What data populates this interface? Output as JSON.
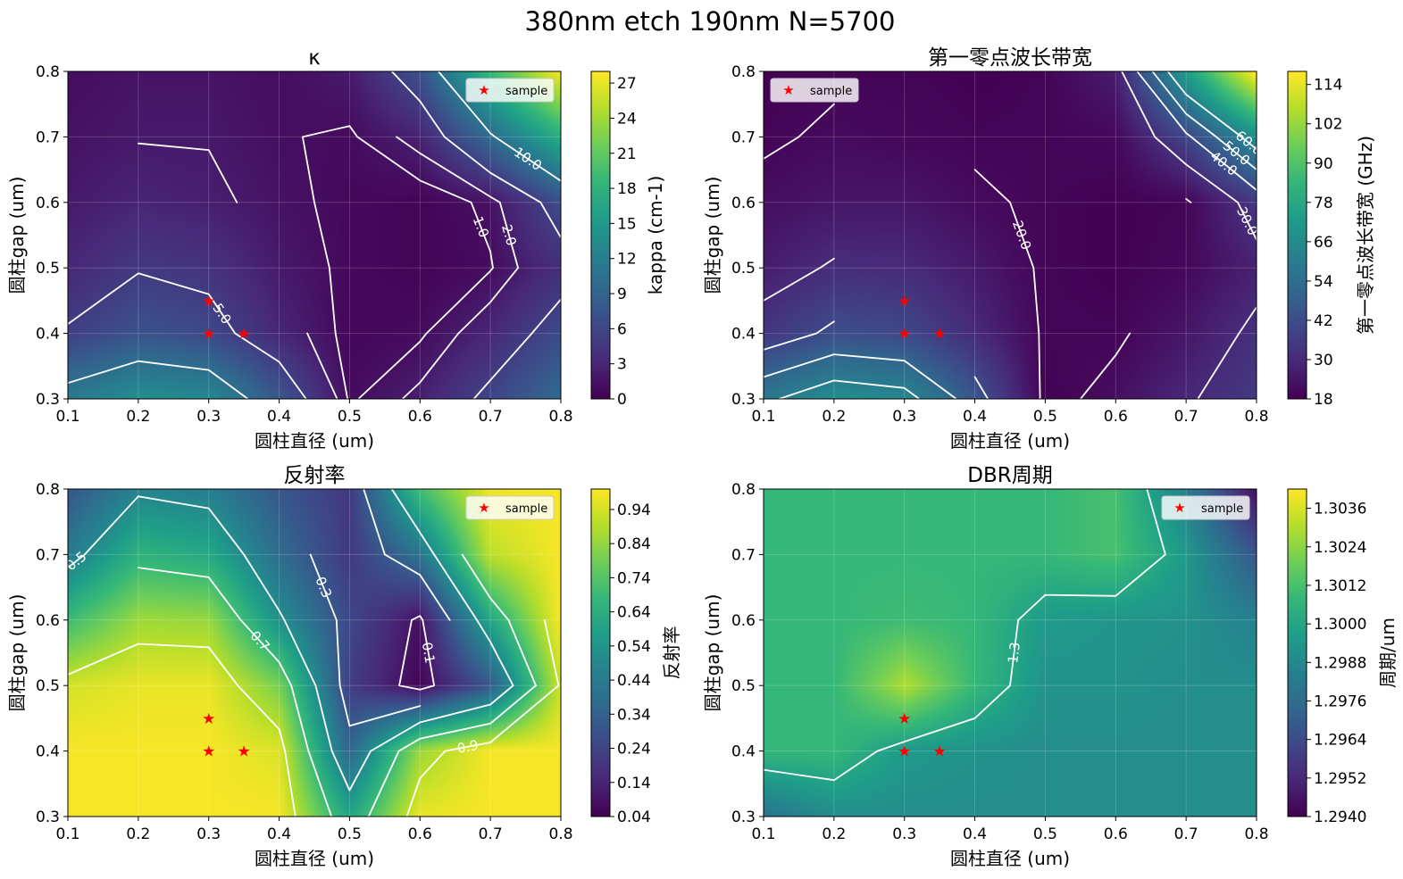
{
  "suptitle": "380nm etch 190nm N=5700",
  "colors": {
    "viridis": [
      "#440154",
      "#482878",
      "#3e4989",
      "#31688e",
      "#26828e",
      "#1f9e89",
      "#35b779",
      "#6ece58",
      "#b5de2b",
      "#fde725"
    ],
    "contour": "#ffffff",
    "sample": "#ff0000"
  },
  "chart_data": [
    {
      "type": "heatmap",
      "id": "kappa",
      "title": "κ",
      "xlabel": "圆柱直径 (um)",
      "ylabel": "圆柱gap (um)",
      "xlim": [
        0.1,
        0.8
      ],
      "ylim": [
        0.3,
        0.8
      ],
      "x": [
        0.1,
        0.2,
        0.3,
        0.4,
        0.5,
        0.6,
        0.7,
        0.8
      ],
      "y": [
        0.3,
        0.4,
        0.5,
        0.6,
        0.7,
        0.8
      ],
      "xticks": [
        "0.1",
        "0.2",
        "0.3",
        "0.4",
        "0.5",
        "0.6",
        "0.7",
        "0.8"
      ],
      "yticks": [
        "0.3",
        "0.4",
        "0.5",
        "0.6",
        "0.7",
        "0.8"
      ],
      "z": [
        [
          11.5,
          13.8,
          13.0,
          7.6,
          0.8,
          2.4,
          5.8,
          9.5
        ],
        [
          5.3,
          7.2,
          6.2,
          3.0,
          0.5,
          0.8,
          3.0,
          6.4
        ],
        [
          3.2,
          4.8,
          4.2,
          2.0,
          0.6,
          0.2,
          0.9,
          3.7
        ],
        [
          2.0,
          2.9,
          2.4,
          1.4,
          0.6,
          0.2,
          1.3,
          6.5
        ],
        [
          1.4,
          1.9,
          1.9,
          1.1,
          0.8,
          2.6,
          9.5,
          17.2
        ],
        [
          1.0,
          1.5,
          1.5,
          1.0,
          2.0,
          7.0,
          18.5,
          27.5
        ]
      ],
      "levels": [
        1.0,
        2.0,
        5.0,
        10.0
      ],
      "contour_labels": [
        "1.0",
        "2.0",
        "5.0",
        "10.0"
      ],
      "colorbar": {
        "label": "kappa (cm-1)",
        "vmin": 0,
        "vmax": 28,
        "ticks": [
          0,
          3,
          6,
          9,
          12,
          15,
          18,
          21,
          24,
          27
        ],
        "tick_labels": [
          "0",
          "3",
          "6",
          "9",
          "12",
          "15",
          "18",
          "21",
          "24",
          "27"
        ]
      },
      "legend": {
        "label": "sample",
        "position": "upper right"
      },
      "samples": [
        [
          0.3,
          0.45
        ],
        [
          0.3,
          0.4
        ],
        [
          0.35,
          0.4
        ]
      ]
    },
    {
      "type": "heatmap",
      "id": "bandwidth",
      "title": "第一零点波长带宽",
      "xlabel": "圆柱直径 (um)",
      "ylabel": "圆柱gap (um)",
      "xlim": [
        0.1,
        0.8
      ],
      "ylim": [
        0.3,
        0.8
      ],
      "x": [
        0.1,
        0.2,
        0.3,
        0.4,
        0.5,
        0.6,
        0.7,
        0.8
      ],
      "y": [
        0.3,
        0.4,
        0.5,
        0.6,
        0.7,
        0.8
      ],
      "xticks": [
        "0.1",
        "0.2",
        "0.3",
        "0.4",
        "0.5",
        "0.6",
        "0.7",
        "0.8"
      ],
      "yticks": [
        "0.3",
        "0.4",
        "0.5",
        "0.6",
        "0.7",
        "0.8"
      ],
      "z": [
        [
          58,
          67,
          64,
          45,
          18,
          22,
          29,
          35
        ],
        [
          34,
          42,
          40,
          30,
          19,
          19,
          24,
          32
        ],
        [
          26,
          31,
          30,
          25,
          19,
          18,
          20,
          27
        ],
        [
          22,
          24,
          24,
          21,
          19,
          18,
          19,
          34
        ],
        [
          19,
          21,
          20,
          19,
          19,
          20,
          38,
          66
        ],
        [
          18,
          19,
          19,
          18,
          19,
          26,
          72,
          118
        ]
      ],
      "levels": [
        20.0,
        30.0,
        40.0,
        50.0,
        60.0
      ],
      "contour_labels": [
        "20.0",
        "30.0",
        "40.0",
        "50.0",
        "60.0"
      ],
      "colorbar": {
        "label": "第一零点波长带宽 (GHz)",
        "vmin": 18,
        "vmax": 118,
        "ticks": [
          18,
          30,
          42,
          54,
          66,
          78,
          90,
          102,
          114
        ],
        "tick_labels": [
          "18",
          "30",
          "42",
          "54",
          "66",
          "78",
          "90",
          "102",
          "114"
        ]
      },
      "legend": {
        "label": "sample",
        "position": "upper left"
      },
      "samples": [
        [
          0.3,
          0.45
        ],
        [
          0.3,
          0.4
        ],
        [
          0.35,
          0.4
        ]
      ]
    },
    {
      "type": "heatmap",
      "id": "reflectivity",
      "title": "反射率",
      "xlabel": "圆柱直径 (um)",
      "ylabel": "圆柱gap (um)",
      "xlim": [
        0.1,
        0.8
      ],
      "ylim": [
        0.3,
        0.8
      ],
      "x": [
        0.1,
        0.2,
        0.3,
        0.4,
        0.5,
        0.6,
        0.7,
        0.8
      ],
      "y": [
        0.3,
        0.4,
        0.5,
        0.6,
        0.7,
        0.8
      ],
      "xticks": [
        "0.1",
        "0.2",
        "0.3",
        "0.4",
        "0.5",
        "0.6",
        "0.7",
        "0.8"
      ],
      "yticks": [
        "0.3",
        "0.4",
        "0.5",
        "0.6",
        "0.7",
        "0.8"
      ],
      "z": [
        [
          0.99,
          0.99,
          0.99,
          0.99,
          0.6,
          0.97,
          0.99,
          0.99
        ],
        [
          0.99,
          0.99,
          0.99,
          0.95,
          0.35,
          0.85,
          0.99,
          0.99
        ],
        [
          0.94,
          0.97,
          0.97,
          0.8,
          0.22,
          0.05,
          0.3,
          0.92
        ],
        [
          0.7,
          0.86,
          0.85,
          0.52,
          0.25,
          0.08,
          0.6,
          0.99
        ],
        [
          0.45,
          0.66,
          0.62,
          0.38,
          0.2,
          0.4,
          0.9,
          0.99
        ],
        [
          0.3,
          0.48,
          0.45,
          0.3,
          0.2,
          0.7,
          0.98,
          0.99
        ]
      ],
      "levels": [
        0.1,
        0.3,
        0.5,
        0.7,
        0.9
      ],
      "contour_labels": [
        "0.1",
        "0.3",
        "0.5",
        "0.7",
        "0.9"
      ],
      "colorbar": {
        "label": "反射率",
        "vmin": 0.04,
        "vmax": 1.0,
        "ticks": [
          0.04,
          0.14,
          0.24,
          0.34,
          0.44,
          0.54,
          0.64,
          0.74,
          0.84,
          0.94
        ],
        "tick_labels": [
          "0.04",
          "0.14",
          "0.24",
          "0.34",
          "0.44",
          "0.54",
          "0.64",
          "0.74",
          "0.84",
          "0.94"
        ]
      },
      "legend": {
        "label": "sample",
        "position": "upper right"
      },
      "samples": [
        [
          0.3,
          0.45
        ],
        [
          0.3,
          0.4
        ],
        [
          0.35,
          0.4
        ]
      ]
    },
    {
      "type": "heatmap",
      "id": "period",
      "title": "DBR周期",
      "xlabel": "圆柱直径 (um)",
      "ylabel": "圆柱gap (um)",
      "xlim": [
        0.1,
        0.8
      ],
      "ylim": [
        0.3,
        0.8
      ],
      "x": [
        0.1,
        0.2,
        0.3,
        0.4,
        0.5,
        0.6,
        0.7,
        0.8
      ],
      "y": [
        0.3,
        0.4,
        0.5,
        0.6,
        0.7,
        0.8
      ],
      "xticks": [
        "0.1",
        "0.2",
        "0.3",
        "0.4",
        "0.5",
        "0.6",
        "0.7",
        "0.8"
      ],
      "yticks": [
        "0.3",
        "0.4",
        "0.5",
        "0.6",
        "0.7",
        "0.8"
      ],
      "z": [
        [
          1.298,
          1.299,
          1.299,
          1.299,
          1.299,
          1.299,
          1.299,
          1.299
        ],
        [
          1.3008,
          1.3008,
          1.2995,
          1.2992,
          1.299,
          1.299,
          1.299,
          1.299
        ],
        [
          1.3008,
          1.3008,
          1.303,
          1.3008,
          1.2992,
          1.2992,
          1.299,
          1.299
        ],
        [
          1.3008,
          1.3008,
          1.301,
          1.3008,
          1.2995,
          1.2993,
          1.2992,
          1.2985
        ],
        [
          1.3008,
          1.3008,
          1.3008,
          1.3008,
          1.3008,
          1.3012,
          1.2995,
          1.2968
        ],
        [
          1.3008,
          1.3008,
          1.3008,
          1.3008,
          1.3008,
          1.3012,
          1.2985,
          1.2945
        ]
      ],
      "levels": [
        1.3
      ],
      "contour_labels": [
        "1.3"
      ],
      "colorbar": {
        "label": "周期/um",
        "vmin": 1.294,
        "vmax": 1.3042,
        "ticks": [
          1.294,
          1.2952,
          1.2964,
          1.2976,
          1.2988,
          1.3,
          1.3012,
          1.3024,
          1.3036
        ],
        "tick_labels": [
          "1.2940",
          "1.2952",
          "1.2964",
          "1.2976",
          "1.2988",
          "1.3000",
          "1.3012",
          "1.3024",
          "1.3036"
        ]
      },
      "legend": {
        "label": "sample",
        "position": "upper right"
      },
      "samples": [
        [
          0.3,
          0.45
        ],
        [
          0.3,
          0.4
        ],
        [
          0.35,
          0.4
        ]
      ]
    }
  ]
}
